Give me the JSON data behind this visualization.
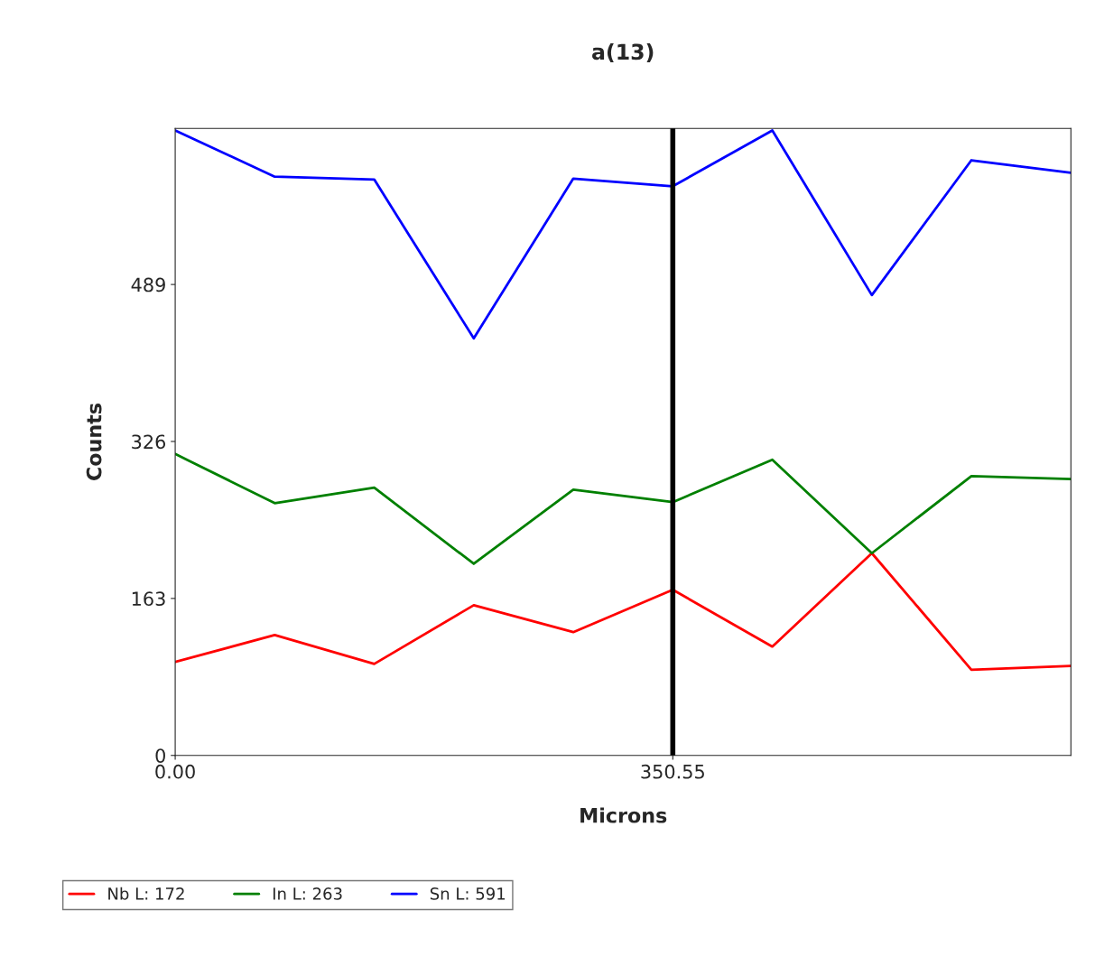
{
  "chart_data": {
    "type": "line",
    "title": "a(13)",
    "xlabel": "Microns",
    "ylabel": "Counts",
    "x": [
      0,
      70.11,
      140.22,
      210.33,
      280.44,
      350.55,
      420.66,
      490.77,
      560.88,
      630.99
    ],
    "series": [
      {
        "name": "Nb L: 172",
        "color": "#ff0000",
        "values": [
          97,
          125,
          95,
          156,
          128,
          172,
          113,
          210,
          89,
          93
        ]
      },
      {
        "name": "In L: 263",
        "color": "#008000",
        "values": [
          313,
          262,
          278,
          199,
          276,
          263,
          307,
          210,
          290,
          287
        ]
      },
      {
        "name": "Sn L: 591",
        "color": "#0000ff",
        "values": [
          649,
          601,
          598,
          433,
          599,
          591,
          649,
          478,
          618,
          605
        ]
      }
    ],
    "xlim": [
      0,
      631
    ],
    "ylim": [
      0,
      651
    ],
    "xticks": [
      {
        "value": 0,
        "label": "0.00"
      },
      {
        "value": 350.55,
        "label": "350.55"
      }
    ],
    "yticks": [
      0,
      163,
      326,
      489
    ],
    "ref_lines": [
      {
        "axis": "x",
        "value": 350.55,
        "color": "#000000",
        "line_style": "solid"
      }
    ],
    "grid": false,
    "legend": "bottom",
    "marker": "none",
    "line_style": "solid"
  }
}
